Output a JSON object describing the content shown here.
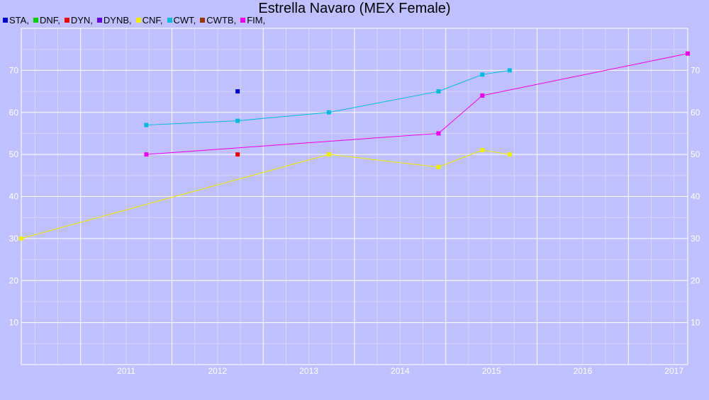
{
  "chart_data": {
    "type": "line",
    "title": "Estrella Navaro (MEX Female)",
    "xlabel": "",
    "ylabel": "",
    "xlim": [
      2010.35,
      2017.65
    ],
    "ylim": [
      0,
      80
    ],
    "x_ticks": [
      "2011",
      "2012",
      "2013",
      "2014",
      "2015",
      "2016",
      "2017"
    ],
    "y_ticks": [
      "10",
      "20",
      "30",
      "40",
      "50",
      "60",
      "70"
    ],
    "grid": true,
    "legend_position": "top-left",
    "series": [
      {
        "name": "STA",
        "color": "#0000cc",
        "points": [
          [
            2012.72,
            65
          ]
        ]
      },
      {
        "name": "DNF",
        "color": "#00cc00",
        "points": []
      },
      {
        "name": "DYN",
        "color": "#ee0000",
        "points": [
          [
            2012.72,
            50
          ]
        ]
      },
      {
        "name": "DYNB",
        "color": "#6600dd",
        "points": []
      },
      {
        "name": "CNF",
        "color": "#eeee00",
        "points": [
          [
            2010.35,
            30
          ],
          [
            2013.72,
            50
          ],
          [
            2014.92,
            47
          ],
          [
            2015.4,
            51
          ],
          [
            2015.7,
            50
          ]
        ]
      },
      {
        "name": "CWT",
        "color": "#00bbdd",
        "points": [
          [
            2011.72,
            57
          ],
          [
            2012.72,
            58
          ],
          [
            2013.72,
            60
          ],
          [
            2014.92,
            65
          ],
          [
            2015.4,
            69
          ],
          [
            2015.7,
            70
          ]
        ]
      },
      {
        "name": "CWTB",
        "color": "#993300",
        "points": []
      },
      {
        "name": "FIM",
        "color": "#ee00ee",
        "points": [
          [
            2011.72,
            50
          ],
          [
            2014.92,
            55
          ],
          [
            2015.4,
            64
          ],
          [
            2017.65,
            74
          ]
        ]
      }
    ]
  }
}
